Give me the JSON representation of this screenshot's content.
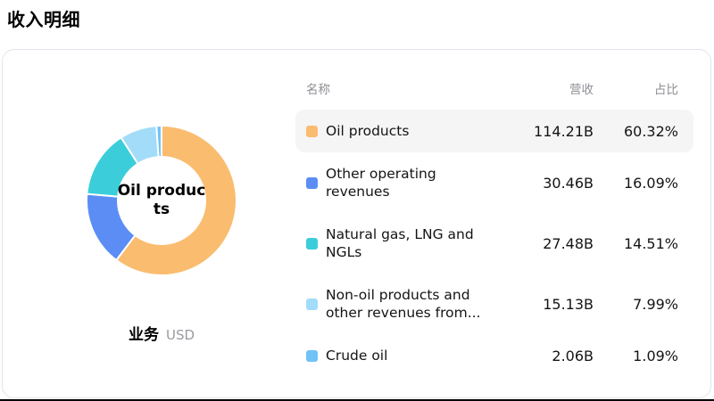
{
  "page_title": "收入明细",
  "card": {
    "center_label": "Oil products",
    "footer": {
      "dimension": "业务",
      "unit": "USD"
    },
    "table": {
      "headers": {
        "name": "名称",
        "revenue": "营收",
        "share": "占比"
      },
      "items": [
        {
          "name": "Oil products",
          "revenue": "114.21B",
          "share": "60.32%",
          "color": "#FABC6F",
          "highlighted": true
        },
        {
          "name": "Other operating revenues",
          "revenue": "30.46B",
          "share": "16.09%",
          "color": "#5B8DF5",
          "highlighted": false
        },
        {
          "name": "Natural gas, LNG and NGLs",
          "revenue": "27.48B",
          "share": "14.51%",
          "color": "#3BCEDA",
          "highlighted": false
        },
        {
          "name": "Non-oil products and other revenues from...",
          "revenue": "15.13B",
          "share": "7.99%",
          "color": "#A2DCF9",
          "highlighted": false
        },
        {
          "name": "Crude oil",
          "revenue": "2.06B",
          "share": "1.09%",
          "color": "#70C2F7",
          "highlighted": false
        }
      ]
    }
  },
  "chart_data": {
    "type": "pie",
    "title": "收入明细",
    "subtype": "donut",
    "categories": [
      "Oil products",
      "Other operating revenues",
      "Natural gas, LNG and NGLs",
      "Non-oil products and other revenues from...",
      "Crude oil"
    ],
    "values": [
      114.21,
      30.46,
      27.48,
      15.13,
      2.06
    ],
    "percentages": [
      60.32,
      16.09,
      14.51,
      7.99,
      1.09
    ],
    "value_unit": "B",
    "currency": "USD",
    "colors": [
      "#FABC6F",
      "#5B8DF5",
      "#3BCEDA",
      "#A2DCF9",
      "#70C2F7"
    ],
    "inner_radius_ratio": 0.58,
    "start_angle_deg": -90,
    "direction": "clockwise",
    "slice_gap_color": "#ffffff",
    "center_label": "Oil products",
    "legend_position": "right-table"
  }
}
